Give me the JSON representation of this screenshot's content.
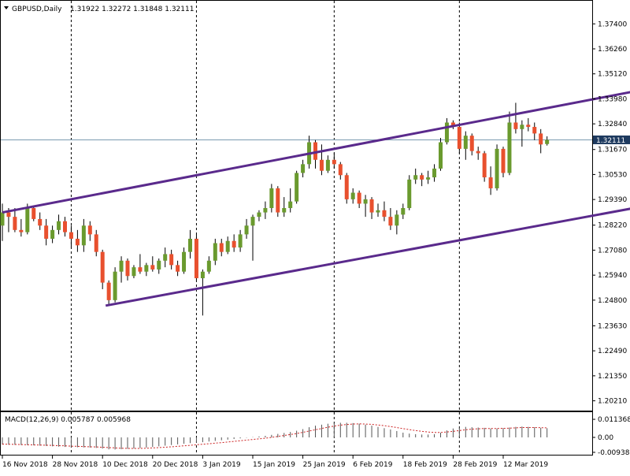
{
  "window": {
    "symbol": "GBPUSD",
    "timeframe": "Daily",
    "header_text": "GBPUSD,Daily",
    "ohlc_text": "1.31922 1.32272 1.31848 1.32111",
    "menu_icon": "triangle-down-icon"
  },
  "colors": {
    "bull": "#6a9a2e",
    "bear": "#e8502e",
    "wick": "#000000",
    "channel": "#5a2a8c",
    "grid": "#000000",
    "price_line": "#7a9ab0",
    "price_label_bg": "#1e3a5f",
    "price_label_text": "#ffffff",
    "macd_hist": "#555555",
    "macd_signal": "#cc2222"
  },
  "chart_data": [
    {
      "type": "candlestick",
      "symbol": "GBPUSD",
      "timeframe": "Daily",
      "current_price": "1.32111",
      "ylim": [
        1.198,
        1.382
      ],
      "y_ticks": [
        "1.37400",
        "1.36260",
        "1.35120",
        "1.33980",
        "1.32840",
        "1.31670",
        "1.30530",
        "1.29390",
        "1.28220",
        "1.27080",
        "1.25940",
        "1.24800",
        "1.23630",
        "1.22490",
        "1.21350",
        "1.20210"
      ],
      "x_ticks": [
        "16 Nov 2018",
        "28 Nov 2018",
        "10 Dec 2018",
        "20 Dec 2018",
        "3 Jan 2019",
        "15 Jan 2019",
        "25 Jan 2019",
        "6 Feb 2019",
        "18 Feb 2019",
        "28 Feb 2019",
        "12 Mar 2019"
      ],
      "grid": "vertical dotted separators",
      "candles": [
        {
          "o": 1.282,
          "h": 1.292,
          "l": 1.275,
          "c": 1.288
        },
        {
          "o": 1.288,
          "h": 1.29,
          "l": 1.279,
          "c": 1.286
        },
        {
          "o": 1.286,
          "h": 1.29,
          "l": 1.279,
          "c": 1.28
        },
        {
          "o": 1.28,
          "h": 1.285,
          "l": 1.277,
          "c": 1.279
        },
        {
          "o": 1.279,
          "h": 1.292,
          "l": 1.278,
          "c": 1.29
        },
        {
          "o": 1.29,
          "h": 1.291,
          "l": 1.284,
          "c": 1.285
        },
        {
          "o": 1.285,
          "h": 1.288,
          "l": 1.28,
          "c": 1.282
        },
        {
          "o": 1.282,
          "h": 1.285,
          "l": 1.273,
          "c": 1.276
        },
        {
          "o": 1.276,
          "h": 1.282,
          "l": 1.274,
          "c": 1.28
        },
        {
          "o": 1.28,
          "h": 1.287,
          "l": 1.278,
          "c": 1.284
        },
        {
          "o": 1.284,
          "h": 1.286,
          "l": 1.277,
          "c": 1.279
        },
        {
          "o": 1.279,
          "h": 1.282,
          "l": 1.272,
          "c": 1.276
        },
        {
          "o": 1.276,
          "h": 1.28,
          "l": 1.27,
          "c": 1.273
        },
        {
          "o": 1.273,
          "h": 1.285,
          "l": 1.27,
          "c": 1.282
        },
        {
          "o": 1.282,
          "h": 1.284,
          "l": 1.275,
          "c": 1.278
        },
        {
          "o": 1.278,
          "h": 1.28,
          "l": 1.268,
          "c": 1.27
        },
        {
          "o": 1.27,
          "h": 1.271,
          "l": 1.253,
          "c": 1.256
        },
        {
          "o": 1.256,
          "h": 1.257,
          "l": 1.246,
          "c": 1.248
        },
        {
          "o": 1.248,
          "h": 1.263,
          "l": 1.247,
          "c": 1.261
        },
        {
          "o": 1.261,
          "h": 1.268,
          "l": 1.256,
          "c": 1.266
        },
        {
          "o": 1.266,
          "h": 1.267,
          "l": 1.257,
          "c": 1.259
        },
        {
          "o": 1.259,
          "h": 1.264,
          "l": 1.258,
          "c": 1.263
        },
        {
          "o": 1.263,
          "h": 1.269,
          "l": 1.26,
          "c": 1.261
        },
        {
          "o": 1.261,
          "h": 1.265,
          "l": 1.259,
          "c": 1.264
        },
        {
          "o": 1.264,
          "h": 1.268,
          "l": 1.261,
          "c": 1.262
        },
        {
          "o": 1.262,
          "h": 1.267,
          "l": 1.26,
          "c": 1.266
        },
        {
          "o": 1.266,
          "h": 1.272,
          "l": 1.263,
          "c": 1.269
        },
        {
          "o": 1.269,
          "h": 1.271,
          "l": 1.262,
          "c": 1.264
        },
        {
          "o": 1.264,
          "h": 1.266,
          "l": 1.259,
          "c": 1.261
        },
        {
          "o": 1.261,
          "h": 1.272,
          "l": 1.26,
          "c": 1.27
        },
        {
          "o": 1.27,
          "h": 1.28,
          "l": 1.267,
          "c": 1.276
        },
        {
          "o": 1.276,
          "h": 1.278,
          "l": 1.257,
          "c": 1.258
        },
        {
          "o": 1.258,
          "h": 1.262,
          "l": 1.241,
          "c": 1.261
        },
        {
          "o": 1.261,
          "h": 1.268,
          "l": 1.26,
          "c": 1.266
        },
        {
          "o": 1.266,
          "h": 1.276,
          "l": 1.264,
          "c": 1.274
        },
        {
          "o": 1.274,
          "h": 1.276,
          "l": 1.268,
          "c": 1.27
        },
        {
          "o": 1.27,
          "h": 1.277,
          "l": 1.269,
          "c": 1.275
        },
        {
          "o": 1.275,
          "h": 1.278,
          "l": 1.27,
          "c": 1.272
        },
        {
          "o": 1.272,
          "h": 1.28,
          "l": 1.27,
          "c": 1.278
        },
        {
          "o": 1.278,
          "h": 1.285,
          "l": 1.276,
          "c": 1.282
        },
        {
          "o": 1.282,
          "h": 1.287,
          "l": 1.266,
          "c": 1.286
        },
        {
          "o": 1.286,
          "h": 1.289,
          "l": 1.284,
          "c": 1.288
        },
        {
          "o": 1.288,
          "h": 1.293,
          "l": 1.285,
          "c": 1.29
        },
        {
          "o": 1.29,
          "h": 1.301,
          "l": 1.288,
          "c": 1.299
        },
        {
          "o": 1.299,
          "h": 1.3,
          "l": 1.286,
          "c": 1.288
        },
        {
          "o": 1.288,
          "h": 1.295,
          "l": 1.286,
          "c": 1.29
        },
        {
          "o": 1.29,
          "h": 1.299,
          "l": 1.288,
          "c": 1.293
        },
        {
          "o": 1.293,
          "h": 1.307,
          "l": 1.292,
          "c": 1.306
        },
        {
          "o": 1.306,
          "h": 1.312,
          "l": 1.304,
          "c": 1.31
        },
        {
          "o": 1.31,
          "h": 1.323,
          "l": 1.308,
          "c": 1.32
        },
        {
          "o": 1.32,
          "h": 1.321,
          "l": 1.308,
          "c": 1.312
        },
        {
          "o": 1.312,
          "h": 1.319,
          "l": 1.305,
          "c": 1.307
        },
        {
          "o": 1.307,
          "h": 1.314,
          "l": 1.306,
          "c": 1.312
        },
        {
          "o": 1.312,
          "h": 1.315,
          "l": 1.308,
          "c": 1.31
        },
        {
          "o": 1.31,
          "h": 1.311,
          "l": 1.303,
          "c": 1.305
        },
        {
          "o": 1.305,
          "h": 1.306,
          "l": 1.292,
          "c": 1.294
        },
        {
          "o": 1.294,
          "h": 1.299,
          "l": 1.292,
          "c": 1.297
        },
        {
          "o": 1.297,
          "h": 1.298,
          "l": 1.29,
          "c": 1.292
        },
        {
          "o": 1.292,
          "h": 1.296,
          "l": 1.286,
          "c": 1.294
        },
        {
          "o": 1.294,
          "h": 1.295,
          "l": 1.285,
          "c": 1.288
        },
        {
          "o": 1.288,
          "h": 1.292,
          "l": 1.286,
          "c": 1.289
        },
        {
          "o": 1.289,
          "h": 1.293,
          "l": 1.284,
          "c": 1.286
        },
        {
          "o": 1.286,
          "h": 1.29,
          "l": 1.28,
          "c": 1.282
        },
        {
          "o": 1.282,
          "h": 1.289,
          "l": 1.278,
          "c": 1.287
        },
        {
          "o": 1.287,
          "h": 1.292,
          "l": 1.285,
          "c": 1.29
        },
        {
          "o": 1.29,
          "h": 1.305,
          "l": 1.289,
          "c": 1.303
        },
        {
          "o": 1.303,
          "h": 1.308,
          "l": 1.301,
          "c": 1.305
        },
        {
          "o": 1.305,
          "h": 1.306,
          "l": 1.3,
          "c": 1.303
        },
        {
          "o": 1.303,
          "h": 1.307,
          "l": 1.301,
          "c": 1.304
        },
        {
          "o": 1.304,
          "h": 1.31,
          "l": 1.302,
          "c": 1.308
        },
        {
          "o": 1.308,
          "h": 1.322,
          "l": 1.307,
          "c": 1.32
        },
        {
          "o": 1.32,
          "h": 1.331,
          "l": 1.319,
          "c": 1.329
        },
        {
          "o": 1.329,
          "h": 1.33,
          "l": 1.326,
          "c": 1.327
        },
        {
          "o": 1.327,
          "h": 1.329,
          "l": 1.315,
          "c": 1.317
        },
        {
          "o": 1.317,
          "h": 1.325,
          "l": 1.312,
          "c": 1.323
        },
        {
          "o": 1.323,
          "h": 1.324,
          "l": 1.314,
          "c": 1.316
        },
        {
          "o": 1.316,
          "h": 1.318,
          "l": 1.312,
          "c": 1.315
        },
        {
          "o": 1.315,
          "h": 1.316,
          "l": 1.302,
          "c": 1.304
        },
        {
          "o": 1.304,
          "h": 1.309,
          "l": 1.296,
          "c": 1.299
        },
        {
          "o": 1.299,
          "h": 1.319,
          "l": 1.298,
          "c": 1.317
        },
        {
          "o": 1.317,
          "h": 1.318,
          "l": 1.304,
          "c": 1.306
        },
        {
          "o": 1.306,
          "h": 1.334,
          "l": 1.305,
          "c": 1.329
        },
        {
          "o": 1.329,
          "h": 1.338,
          "l": 1.324,
          "c": 1.326
        },
        {
          "o": 1.326,
          "h": 1.33,
          "l": 1.318,
          "c": 1.328
        },
        {
          "o": 1.328,
          "h": 1.331,
          "l": 1.325,
          "c": 1.327
        },
        {
          "o": 1.327,
          "h": 1.329,
          "l": 1.321,
          "c": 1.324
        },
        {
          "o": 1.324,
          "h": 1.326,
          "l": 1.315,
          "c": 1.319
        },
        {
          "o": 1.3192,
          "h": 1.3227,
          "l": 1.3185,
          "c": 1.3211
        }
      ],
      "channel_lines": [
        {
          "name": "upper",
          "points": [
            [
              0,
              1.288
            ],
            [
              117,
              1.352
            ]
          ]
        },
        {
          "name": "lower",
          "points": [
            [
              16.5,
              1.2455
            ],
            [
              117,
              1.2985
            ]
          ]
        }
      ]
    },
    {
      "type": "histogram",
      "indicator_label": "MACD(12,26,9) 0.005787 0.005968",
      "y_ticks": [
        "0.011368",
        "0.00",
        "-0.009386"
      ],
      "ylim": [
        -0.0094,
        0.0114
      ],
      "macd": [
        -0.0045,
        -0.0046,
        -0.0047,
        -0.0048,
        -0.0049,
        -0.005,
        -0.0052,
        -0.0054,
        -0.0056,
        -0.0058,
        -0.006,
        -0.0061,
        -0.0062,
        -0.0063,
        -0.0064,
        -0.0066,
        -0.007,
        -0.0075,
        -0.0076,
        -0.0074,
        -0.0072,
        -0.007,
        -0.0067,
        -0.0064,
        -0.006,
        -0.0056,
        -0.0052,
        -0.0048,
        -0.0044,
        -0.004,
        -0.0036,
        -0.0033,
        -0.003,
        -0.0026,
        -0.0022,
        -0.0018,
        -0.0014,
        -0.001,
        -0.0006,
        -0.0002,
        0.0002,
        0.0006,
        0.001,
        0.0016,
        0.0022,
        0.0028,
        0.0034,
        0.0042,
        0.0052,
        0.0064,
        0.0074,
        0.008,
        0.0086,
        0.009,
        0.0092,
        0.0092,
        0.009,
        0.0086,
        0.008,
        0.0074,
        0.0066,
        0.0058,
        0.005,
        0.004,
        0.003,
        0.0024,
        0.002,
        0.0018,
        0.0018,
        0.002,
        0.003,
        0.0044,
        0.0056,
        0.0062,
        0.0066,
        0.0064,
        0.0062,
        0.006,
        0.0056,
        0.0056,
        0.0058,
        0.0062,
        0.0066,
        0.0068,
        0.0066,
        0.0064,
        0.006,
        0.0058
      ],
      "signal": [
        -0.0042,
        -0.0043,
        -0.0044,
        -0.0045,
        -0.0046,
        -0.0047,
        -0.0048,
        -0.0049,
        -0.005,
        -0.0052,
        -0.0053,
        -0.0055,
        -0.0056,
        -0.0058,
        -0.0059,
        -0.006,
        -0.0062,
        -0.0064,
        -0.0066,
        -0.0068,
        -0.0069,
        -0.0069,
        -0.0069,
        -0.0068,
        -0.0066,
        -0.0064,
        -0.0062,
        -0.0059,
        -0.0056,
        -0.0053,
        -0.005,
        -0.0046,
        -0.0043,
        -0.004,
        -0.0036,
        -0.0033,
        -0.0029,
        -0.0025,
        -0.0021,
        -0.0017,
        -0.0013,
        -0.0009,
        -0.0005,
        0.0,
        0.0006,
        0.0012,
        0.0018,
        0.0024,
        0.0032,
        0.004,
        0.0048,
        0.0056,
        0.0064,
        0.0071,
        0.0077,
        0.0081,
        0.0084,
        0.0085,
        0.0084,
        0.0082,
        0.0078,
        0.0074,
        0.0068,
        0.0062,
        0.0055,
        0.0049,
        0.0043,
        0.0038,
        0.0034,
        0.0031,
        0.0031,
        0.0034,
        0.0038,
        0.0043,
        0.0048,
        0.0052,
        0.0054,
        0.0056,
        0.0056,
        0.0056,
        0.0057,
        0.0058,
        0.006,
        0.0062,
        0.0062,
        0.0062,
        0.0061,
        0.006
      ]
    }
  ]
}
